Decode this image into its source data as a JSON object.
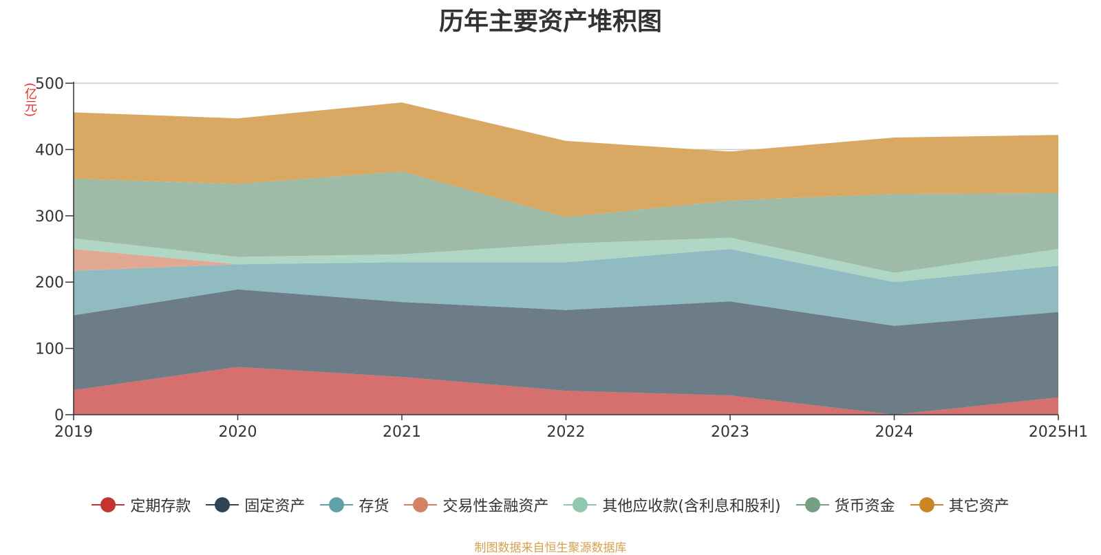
{
  "chart_data": {
    "type": "area",
    "stacked": true,
    "title": "历年主要资产堆积图",
    "unit_label": "(亿元)",
    "x": [
      "2019",
      "2020",
      "2021",
      "2022",
      "2023",
      "2024",
      "2025H1"
    ],
    "ylim": [
      0,
      500
    ],
    "yticks": [
      "0",
      "100",
      "200",
      "300",
      "400",
      "500"
    ],
    "grid": true,
    "legend_position": "bottom",
    "series": [
      {
        "name": "定期存款",
        "color": "#c23531",
        "fill": "#d5706e",
        "values": [
          37,
          72,
          57,
          36,
          29,
          0,
          26
        ]
      },
      {
        "name": "固定资产",
        "color": "#2f4554",
        "fill": "#6d7d88",
        "values": [
          113,
          117,
          113,
          122,
          142,
          134,
          129
        ]
      },
      {
        "name": "存货",
        "color": "#61a0a8",
        "fill": "#90bbc1",
        "values": [
          67,
          38,
          60,
          72,
          79,
          66,
          70
        ]
      },
      {
        "name": "交易性金融资产",
        "color": "#d48265",
        "fill": "#e1a893",
        "values": [
          33,
          0,
          0,
          0,
          0,
          0,
          0
        ]
      },
      {
        "name": "其他应收款(含利息和股利)",
        "color": "#91c7ae",
        "fill": "#b0d7c5",
        "values": [
          16,
          11,
          12,
          28,
          17,
          14,
          25
        ]
      },
      {
        "name": "货币资金",
        "color": "#749f83",
        "fill": "#9ebba8",
        "values": [
          90,
          110,
          125,
          40,
          56,
          119,
          84
        ]
      },
      {
        "name": "其它资产",
        "color": "#ca8622",
        "fill": "#d9a964",
        "values": [
          100,
          99,
          104,
          115,
          74,
          85,
          88
        ]
      }
    ]
  },
  "source_text": "制图数据来自恒生聚源数据库"
}
